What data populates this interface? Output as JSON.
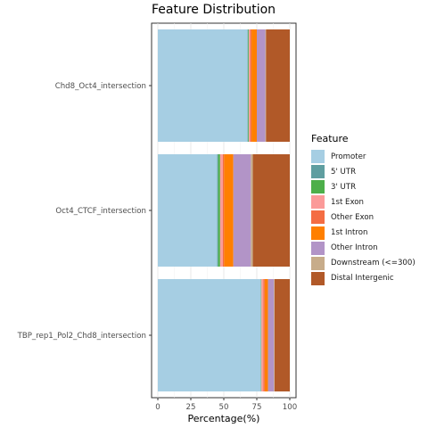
{
  "chart_data": {
    "type": "bar",
    "orientation": "horizontal",
    "stacked": true,
    "title": "Feature Distribution",
    "xlabel": "Percentage(%)",
    "ylabel": "",
    "xlim": [
      0,
      100
    ],
    "xticks": [
      "0",
      "25",
      "50",
      "75",
      "100"
    ],
    "grid": true,
    "legend_position": "right",
    "legend_title": "Feature",
    "categories": [
      "Chd8_Oct4_intersection",
      "Oct4_CTCF_intersection",
      "TBP_rep1_Pol2_Chd8_intersection"
    ],
    "series": [
      {
        "name": "Promoter",
        "color": "#A6CEE3",
        "values": [
          68.0,
          45.0,
          78.0
        ]
      },
      {
        "name": "5' UTR",
        "color": "#5F9EA0",
        "values": [
          0.5,
          0.7,
          0.2
        ]
      },
      {
        "name": "3' UTR",
        "color": "#4DAF4A",
        "values": [
          0.5,
          1.5,
          0.3
        ]
      },
      {
        "name": "1st Exon",
        "color": "#FB9A99",
        "values": [
          1.0,
          2.0,
          1.5
        ]
      },
      {
        "name": "Other Exon",
        "color": "#F46D43",
        "values": [
          1.0,
          1.0,
          1.0
        ]
      },
      {
        "name": "1st Intron",
        "color": "#FF7F00",
        "values": [
          4.0,
          7.0,
          2.5
        ]
      },
      {
        "name": "Other Intron",
        "color": "#B294C7",
        "values": [
          6.5,
          13.3,
          4.5
        ]
      },
      {
        "name": "Downstream (<=300)",
        "color": "#C7AC8A",
        "values": [
          0.5,
          1.5,
          0.5
        ]
      },
      {
        "name": "Distal Intergenic",
        "color": "#B15928",
        "values": [
          18.0,
          28.0,
          11.5
        ]
      }
    ]
  }
}
